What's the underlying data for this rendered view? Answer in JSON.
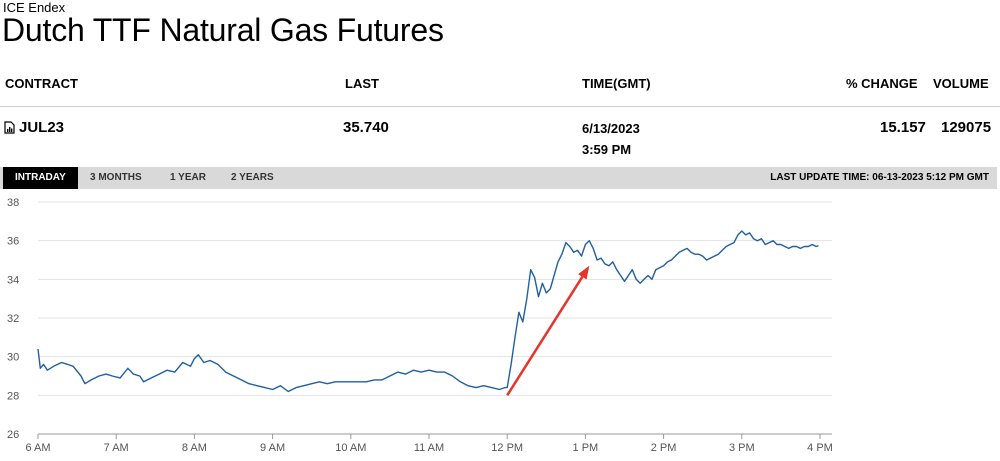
{
  "header": {
    "exchange": "ICE Endex",
    "title": "Dutch TTF Natural Gas Futures"
  },
  "table": {
    "columns": {
      "contract": "CONTRACT",
      "last": "LAST",
      "time": "TIME(GMT)",
      "pct_change": "% CHANGE",
      "volume": "VOLUME"
    },
    "row": {
      "contract_icon": "document-chart-icon",
      "contract": "JUL23",
      "last": "35.740",
      "date": "6/13/2023",
      "time": "3:59 PM",
      "pct_change": "15.157",
      "volume": "129075"
    }
  },
  "tabs": [
    {
      "label": "INTRADAY",
      "active": true
    },
    {
      "label": "3 MONTHS",
      "active": false
    },
    {
      "label": "1 YEAR",
      "active": false
    },
    {
      "label": "2 YEARS",
      "active": false
    }
  ],
  "last_update": "LAST UPDATE TIME: 06-13-2023 5:12 PM GMT",
  "colors": {
    "line": "#1f5fa3",
    "arrow": "#e8332a",
    "grid": "#e3e3e3",
    "tab_active_bg": "#000000",
    "tab_bar_bg": "#d9d9d9"
  },
  "chart_data": {
    "type": "line",
    "title": "",
    "xlabel": "",
    "ylabel": "",
    "xlim": [
      6,
      16
    ],
    "ylim": [
      26,
      38
    ],
    "y_ticks": [
      26,
      28,
      30,
      32,
      34,
      36,
      38
    ],
    "x_ticks": [
      {
        "t": 6,
        "label": "6 AM"
      },
      {
        "t": 7,
        "label": "7 AM"
      },
      {
        "t": 8,
        "label": "8 AM"
      },
      {
        "t": 9,
        "label": "9 AM"
      },
      {
        "t": 10,
        "label": "10 AM"
      },
      {
        "t": 11,
        "label": "11 AM"
      },
      {
        "t": 12,
        "label": "12 PM"
      },
      {
        "t": 13,
        "label": "1 PM"
      },
      {
        "t": 14,
        "label": "2 PM"
      },
      {
        "t": 15,
        "label": "3 PM"
      },
      {
        "t": 16,
        "label": "4 PM"
      }
    ],
    "grid": true,
    "series": [
      {
        "values": [
          [
            6.0,
            30.4
          ],
          [
            6.03,
            29.4
          ],
          [
            6.07,
            29.6
          ],
          [
            6.12,
            29.3
          ],
          [
            6.2,
            29.5
          ],
          [
            6.3,
            29.7
          ],
          [
            6.38,
            29.6
          ],
          [
            6.45,
            29.5
          ],
          [
            6.55,
            29.0
          ],
          [
            6.6,
            28.6
          ],
          [
            6.68,
            28.8
          ],
          [
            6.78,
            29.0
          ],
          [
            6.87,
            29.1
          ],
          [
            6.95,
            29.0
          ],
          [
            7.05,
            28.9
          ],
          [
            7.15,
            29.4
          ],
          [
            7.22,
            29.1
          ],
          [
            7.3,
            29.0
          ],
          [
            7.35,
            28.7
          ],
          [
            7.45,
            28.9
          ],
          [
            7.55,
            29.1
          ],
          [
            7.65,
            29.3
          ],
          [
            7.75,
            29.2
          ],
          [
            7.85,
            29.7
          ],
          [
            7.95,
            29.5
          ],
          [
            8.0,
            29.9
          ],
          [
            8.05,
            30.1
          ],
          [
            8.12,
            29.7
          ],
          [
            8.2,
            29.8
          ],
          [
            8.3,
            29.6
          ],
          [
            8.4,
            29.2
          ],
          [
            8.5,
            29.0
          ],
          [
            8.6,
            28.8
          ],
          [
            8.7,
            28.6
          ],
          [
            8.8,
            28.5
          ],
          [
            8.9,
            28.4
          ],
          [
            9.0,
            28.3
          ],
          [
            9.1,
            28.5
          ],
          [
            9.2,
            28.2
          ],
          [
            9.3,
            28.4
          ],
          [
            9.4,
            28.5
          ],
          [
            9.5,
            28.6
          ],
          [
            9.6,
            28.7
          ],
          [
            9.7,
            28.6
          ],
          [
            9.8,
            28.7
          ],
          [
            9.9,
            28.7
          ],
          [
            10.0,
            28.7
          ],
          [
            10.1,
            28.7
          ],
          [
            10.2,
            28.7
          ],
          [
            10.3,
            28.8
          ],
          [
            10.4,
            28.8
          ],
          [
            10.5,
            29.0
          ],
          [
            10.6,
            29.2
          ],
          [
            10.7,
            29.1
          ],
          [
            10.8,
            29.3
          ],
          [
            10.9,
            29.2
          ],
          [
            11.0,
            29.3
          ],
          [
            11.1,
            29.2
          ],
          [
            11.2,
            29.2
          ],
          [
            11.3,
            29.0
          ],
          [
            11.4,
            28.7
          ],
          [
            11.5,
            28.5
          ],
          [
            11.6,
            28.4
          ],
          [
            11.7,
            28.5
          ],
          [
            11.8,
            28.4
          ],
          [
            11.9,
            28.3
          ],
          [
            11.97,
            28.4
          ],
          [
            12.0,
            28.4
          ],
          [
            12.05,
            29.6
          ],
          [
            12.1,
            31.0
          ],
          [
            12.15,
            32.3
          ],
          [
            12.2,
            31.8
          ],
          [
            12.25,
            33.0
          ],
          [
            12.3,
            34.5
          ],
          [
            12.35,
            34.1
          ],
          [
            12.4,
            33.1
          ],
          [
            12.45,
            33.8
          ],
          [
            12.5,
            33.3
          ],
          [
            12.55,
            33.5
          ],
          [
            12.6,
            34.2
          ],
          [
            12.65,
            34.9
          ],
          [
            12.7,
            35.3
          ],
          [
            12.75,
            35.9
          ],
          [
            12.8,
            35.7
          ],
          [
            12.85,
            35.4
          ],
          [
            12.9,
            35.5
          ],
          [
            12.95,
            35.2
          ],
          [
            13.0,
            35.8
          ],
          [
            13.05,
            36.0
          ],
          [
            13.1,
            35.6
          ],
          [
            13.15,
            35.0
          ],
          [
            13.2,
            35.1
          ],
          [
            13.25,
            34.8
          ],
          [
            13.3,
            34.7
          ],
          [
            13.35,
            34.9
          ],
          [
            13.4,
            34.5
          ],
          [
            13.45,
            34.2
          ],
          [
            13.5,
            33.9
          ],
          [
            13.55,
            34.2
          ],
          [
            13.6,
            34.5
          ],
          [
            13.65,
            34.0
          ],
          [
            13.7,
            33.8
          ],
          [
            13.75,
            34.0
          ],
          [
            13.8,
            34.2
          ],
          [
            13.85,
            34.0
          ],
          [
            13.9,
            34.5
          ],
          [
            13.95,
            34.6
          ],
          [
            14.0,
            34.7
          ],
          [
            14.05,
            34.9
          ],
          [
            14.1,
            35.0
          ],
          [
            14.15,
            35.2
          ],
          [
            14.2,
            35.4
          ],
          [
            14.25,
            35.5
          ],
          [
            14.3,
            35.6
          ],
          [
            14.35,
            35.4
          ],
          [
            14.4,
            35.3
          ],
          [
            14.45,
            35.3
          ],
          [
            14.5,
            35.2
          ],
          [
            14.55,
            35.0
          ],
          [
            14.6,
            35.1
          ],
          [
            14.65,
            35.2
          ],
          [
            14.7,
            35.3
          ],
          [
            14.75,
            35.5
          ],
          [
            14.8,
            35.7
          ],
          [
            14.85,
            35.8
          ],
          [
            14.9,
            35.9
          ],
          [
            14.95,
            36.3
          ],
          [
            15.0,
            36.5
          ],
          [
            15.05,
            36.3
          ],
          [
            15.1,
            36.4
          ],
          [
            15.15,
            36.1
          ],
          [
            15.2,
            36.0
          ],
          [
            15.25,
            36.1
          ],
          [
            15.3,
            35.8
          ],
          [
            15.35,
            35.9
          ],
          [
            15.4,
            36.0
          ],
          [
            15.45,
            35.8
          ],
          [
            15.5,
            35.8
          ],
          [
            15.55,
            35.7
          ],
          [
            15.6,
            35.6
          ],
          [
            15.65,
            35.7
          ],
          [
            15.7,
            35.7
          ],
          [
            15.75,
            35.6
          ],
          [
            15.8,
            35.7
          ],
          [
            15.85,
            35.7
          ],
          [
            15.9,
            35.8
          ],
          [
            15.95,
            35.7
          ],
          [
            15.98,
            35.74
          ]
        ]
      }
    ],
    "annotations": [
      {
        "type": "arrow",
        "from": [
          12.0,
          28.0
        ],
        "to": [
          13.05,
          34.7
        ]
      }
    ]
  }
}
